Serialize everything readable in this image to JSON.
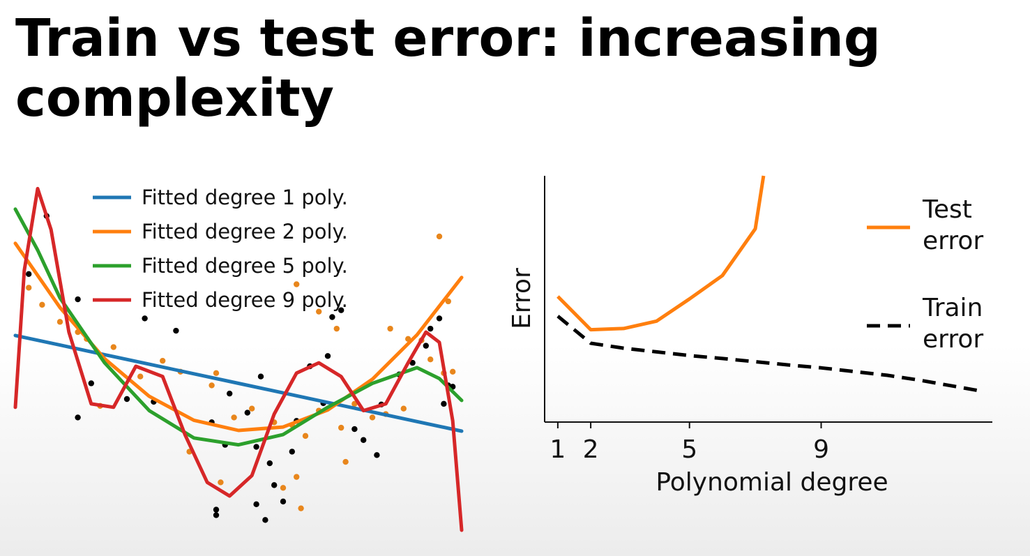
{
  "slide": {
    "title": "Train vs test error: increasing complexity"
  },
  "chart_data": [
    {
      "type": "scatter",
      "title": "",
      "xlabel": "",
      "ylabel": "",
      "xlim": [
        0,
        1
      ],
      "ylim": [
        -2.2,
        2.6
      ],
      "legend_position": "top-center",
      "colors": {
        "points_black": "#000000",
        "points_orange": "#e8861c"
      },
      "points_black": [
        [
          0.07,
          2.4
        ],
        [
          0.03,
          1.55
        ],
        [
          0.14,
          1.18
        ],
        [
          0.29,
          0.9
        ],
        [
          0.36,
          0.72
        ],
        [
          0.17,
          -0.05
        ],
        [
          0.25,
          -0.28
        ],
        [
          0.14,
          -0.55
        ],
        [
          0.31,
          -0.32
        ],
        [
          0.48,
          -0.2
        ],
        [
          0.55,
          0.05
        ],
        [
          0.52,
          -0.48
        ],
        [
          0.44,
          -0.62
        ],
        [
          0.47,
          -0.95
        ],
        [
          0.54,
          -0.98
        ],
        [
          0.57,
          -1.22
        ],
        [
          0.58,
          -1.54
        ],
        [
          0.62,
          -1.05
        ],
        [
          0.45,
          -1.9
        ],
        [
          0.45,
          -1.98
        ],
        [
          0.56,
          -2.05
        ],
        [
          0.54,
          -1.82
        ],
        [
          0.6,
          -1.78
        ],
        [
          0.73,
          1.02
        ],
        [
          0.71,
          0.92
        ],
        [
          0.7,
          0.35
        ],
        [
          0.66,
          0.2
        ],
        [
          0.69,
          -0.34
        ],
        [
          0.76,
          -0.72
        ],
        [
          0.78,
          -0.88
        ],
        [
          0.81,
          -1.1
        ],
        [
          0.82,
          -0.36
        ],
        [
          0.86,
          0.08
        ],
        [
          0.89,
          0.25
        ],
        [
          0.92,
          0.5
        ],
        [
          0.93,
          0.75
        ],
        [
          0.95,
          0.9
        ],
        [
          0.97,
          -0.08
        ],
        [
          0.98,
          -0.1
        ],
        [
          0.96,
          -0.35
        ],
        [
          0.63,
          -0.6
        ]
      ],
      "points_orange": [
        [
          0.03,
          1.35
        ],
        [
          0.06,
          1.1
        ],
        [
          0.1,
          0.85
        ],
        [
          0.14,
          0.7
        ],
        [
          0.16,
          0.6
        ],
        [
          0.19,
          -0.38
        ],
        [
          0.22,
          0.48
        ],
        [
          0.28,
          0.05
        ],
        [
          0.33,
          0.28
        ],
        [
          0.37,
          0.12
        ],
        [
          0.44,
          -0.08
        ],
        [
          0.45,
          0.1
        ],
        [
          0.49,
          -0.55
        ],
        [
          0.53,
          -0.42
        ],
        [
          0.58,
          -0.62
        ],
        [
          0.62,
          -0.66
        ],
        [
          0.65,
          -0.82
        ],
        [
          0.68,
          -0.45
        ],
        [
          0.73,
          -0.7
        ],
        [
          0.76,
          -0.35
        ],
        [
          0.8,
          -0.55
        ],
        [
          0.83,
          -0.5
        ],
        [
          0.87,
          -0.42
        ],
        [
          0.68,
          1.0
        ],
        [
          0.72,
          0.75
        ],
        [
          0.84,
          0.75
        ],
        [
          0.88,
          0.6
        ],
        [
          0.93,
          0.3
        ],
        [
          0.96,
          0.1
        ],
        [
          0.95,
          2.1
        ],
        [
          0.91,
          0.58
        ],
        [
          0.63,
          1.4
        ],
        [
          0.39,
          -1.05
        ],
        [
          0.46,
          -1.5
        ],
        [
          0.6,
          -1.58
        ],
        [
          0.64,
          -1.88
        ],
        [
          0.74,
          -1.2
        ],
        [
          0.98,
          0.12
        ],
        [
          0.63,
          -1.42
        ],
        [
          0.97,
          1.15
        ]
      ],
      "series": [
        {
          "name": "Fitted degree 1 poly.",
          "color": "#1f77b4",
          "x": [
            0,
            0.1,
            0.2,
            0.3,
            0.4,
            0.5,
            0.6,
            0.7,
            0.8,
            0.9,
            1.0
          ],
          "y": [
            0.65,
            0.51,
            0.37,
            0.23,
            0.09,
            -0.05,
            -0.19,
            -0.33,
            -0.47,
            -0.61,
            -0.75
          ]
        },
        {
          "name": "Fitted degree 2 poly.",
          "color": "#ff7f0e",
          "x": [
            0,
            0.1,
            0.2,
            0.3,
            0.4,
            0.5,
            0.6,
            0.7,
            0.8,
            0.9,
            1.0
          ],
          "y": [
            2.0,
            1.06,
            0.31,
            -0.24,
            -0.59,
            -0.74,
            -0.69,
            -0.44,
            0.01,
            0.66,
            1.5
          ]
        },
        {
          "name": "Fitted degree 5 poly.",
          "color": "#2ca02c",
          "x": [
            0,
            0.05,
            0.1,
            0.2,
            0.3,
            0.4,
            0.5,
            0.6,
            0.7,
            0.8,
            0.9,
            0.95,
            1.0
          ],
          "y": [
            2.5,
            1.9,
            1.2,
            0.25,
            -0.45,
            -0.85,
            -0.95,
            -0.8,
            -0.4,
            -0.05,
            0.18,
            0.02,
            -0.3
          ]
        },
        {
          "name": "Fitted degree 9 poly.",
          "color": "#d62728",
          "x": [
            0,
            0.02,
            0.05,
            0.08,
            0.12,
            0.17,
            0.22,
            0.27,
            0.33,
            0.38,
            0.43,
            0.48,
            0.53,
            0.58,
            0.63,
            0.68,
            0.73,
            0.78,
            0.83,
            0.88,
            0.92,
            0.95,
            0.98,
            1.0
          ],
          "y": [
            -0.4,
            1.6,
            2.8,
            2.2,
            0.7,
            -0.35,
            -0.4,
            0.2,
            0.05,
            -0.8,
            -1.5,
            -1.7,
            -1.4,
            -0.5,
            0.1,
            0.25,
            0.05,
            -0.45,
            -0.35,
            0.25,
            0.7,
            0.55,
            -0.6,
            -2.2
          ]
        }
      ]
    },
    {
      "type": "line",
      "title": "",
      "xlabel": "Polynomial degree",
      "ylabel": "Error",
      "xlim": [
        0.6,
        14.2
      ],
      "ylim": [
        0,
        1
      ],
      "xticks": [
        1,
        2,
        5,
        9
      ],
      "yticks": [],
      "legend_position": "right",
      "series": [
        {
          "name": "Test error",
          "color": "#ff7f0e",
          "dash": "solid",
          "x": [
            1,
            2,
            3,
            4,
            5,
            6,
            7,
            7.25
          ],
          "y": [
            0.51,
            0.375,
            0.38,
            0.41,
            0.5,
            0.595,
            0.785,
            1.0
          ]
        },
        {
          "name": "Train error",
          "color": "#000000",
          "dash": "dashed",
          "x": [
            1,
            2,
            3,
            4,
            5,
            6,
            7,
            8,
            9,
            10,
            11,
            12,
            13.9
          ],
          "y": [
            0.43,
            0.32,
            0.3,
            0.285,
            0.27,
            0.258,
            0.245,
            0.232,
            0.22,
            0.205,
            0.19,
            0.17,
            0.125
          ]
        }
      ]
    }
  ]
}
